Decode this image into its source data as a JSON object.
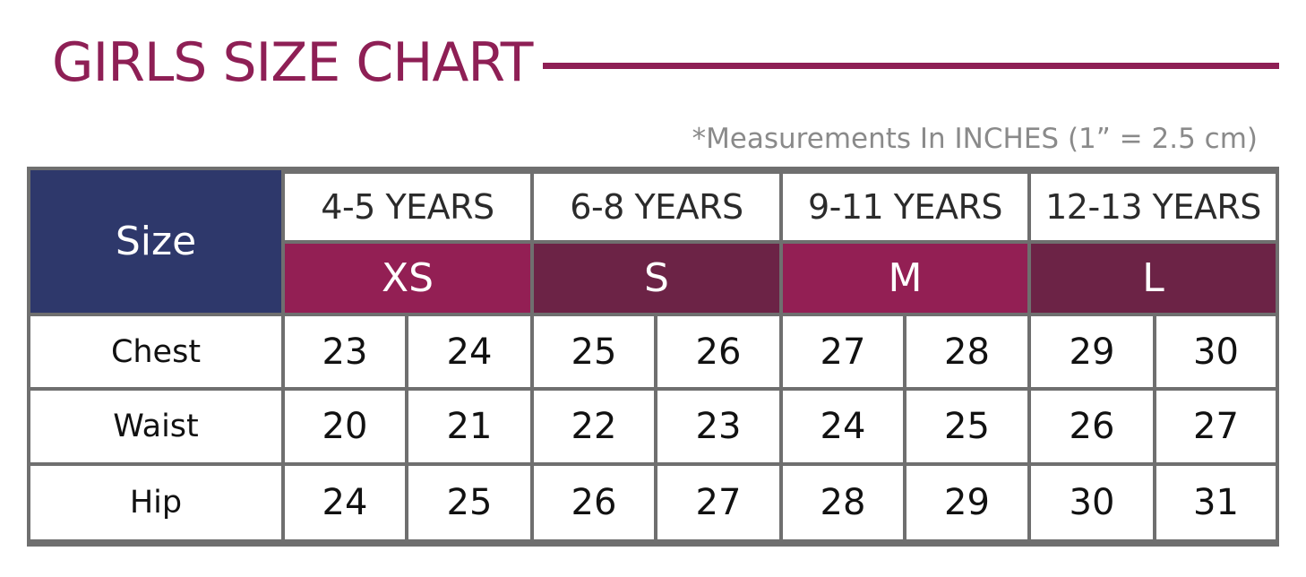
{
  "title": "GIRLS SIZE CHART",
  "note": "*Measurements In INCHES (1” = 2.5 cm)",
  "colors": {
    "title": "#8e1f55",
    "size_header": "#2e386b",
    "code_primary": "#931f54",
    "code_secondary": "#6c2346",
    "grid_lines": "#6f6f6f"
  },
  "table": {
    "size_label": "Size",
    "groups": [
      {
        "age": "4-5 YEARS",
        "code": "XS"
      },
      {
        "age": "6-8 YEARS",
        "code": "S"
      },
      {
        "age": "9-11 YEARS",
        "code": "M"
      },
      {
        "age": "12-13 YEARS",
        "code": "L"
      }
    ],
    "rows": [
      {
        "label": "Chest",
        "values": [
          "23",
          "24",
          "25",
          "26",
          "27",
          "28",
          "29",
          "30"
        ]
      },
      {
        "label": "Waist",
        "values": [
          "20",
          "21",
          "22",
          "23",
          "24",
          "25",
          "26",
          "27"
        ]
      },
      {
        "label": "Hip",
        "values": [
          "24",
          "25",
          "26",
          "27",
          "28",
          "29",
          "30",
          "31"
        ]
      }
    ]
  }
}
